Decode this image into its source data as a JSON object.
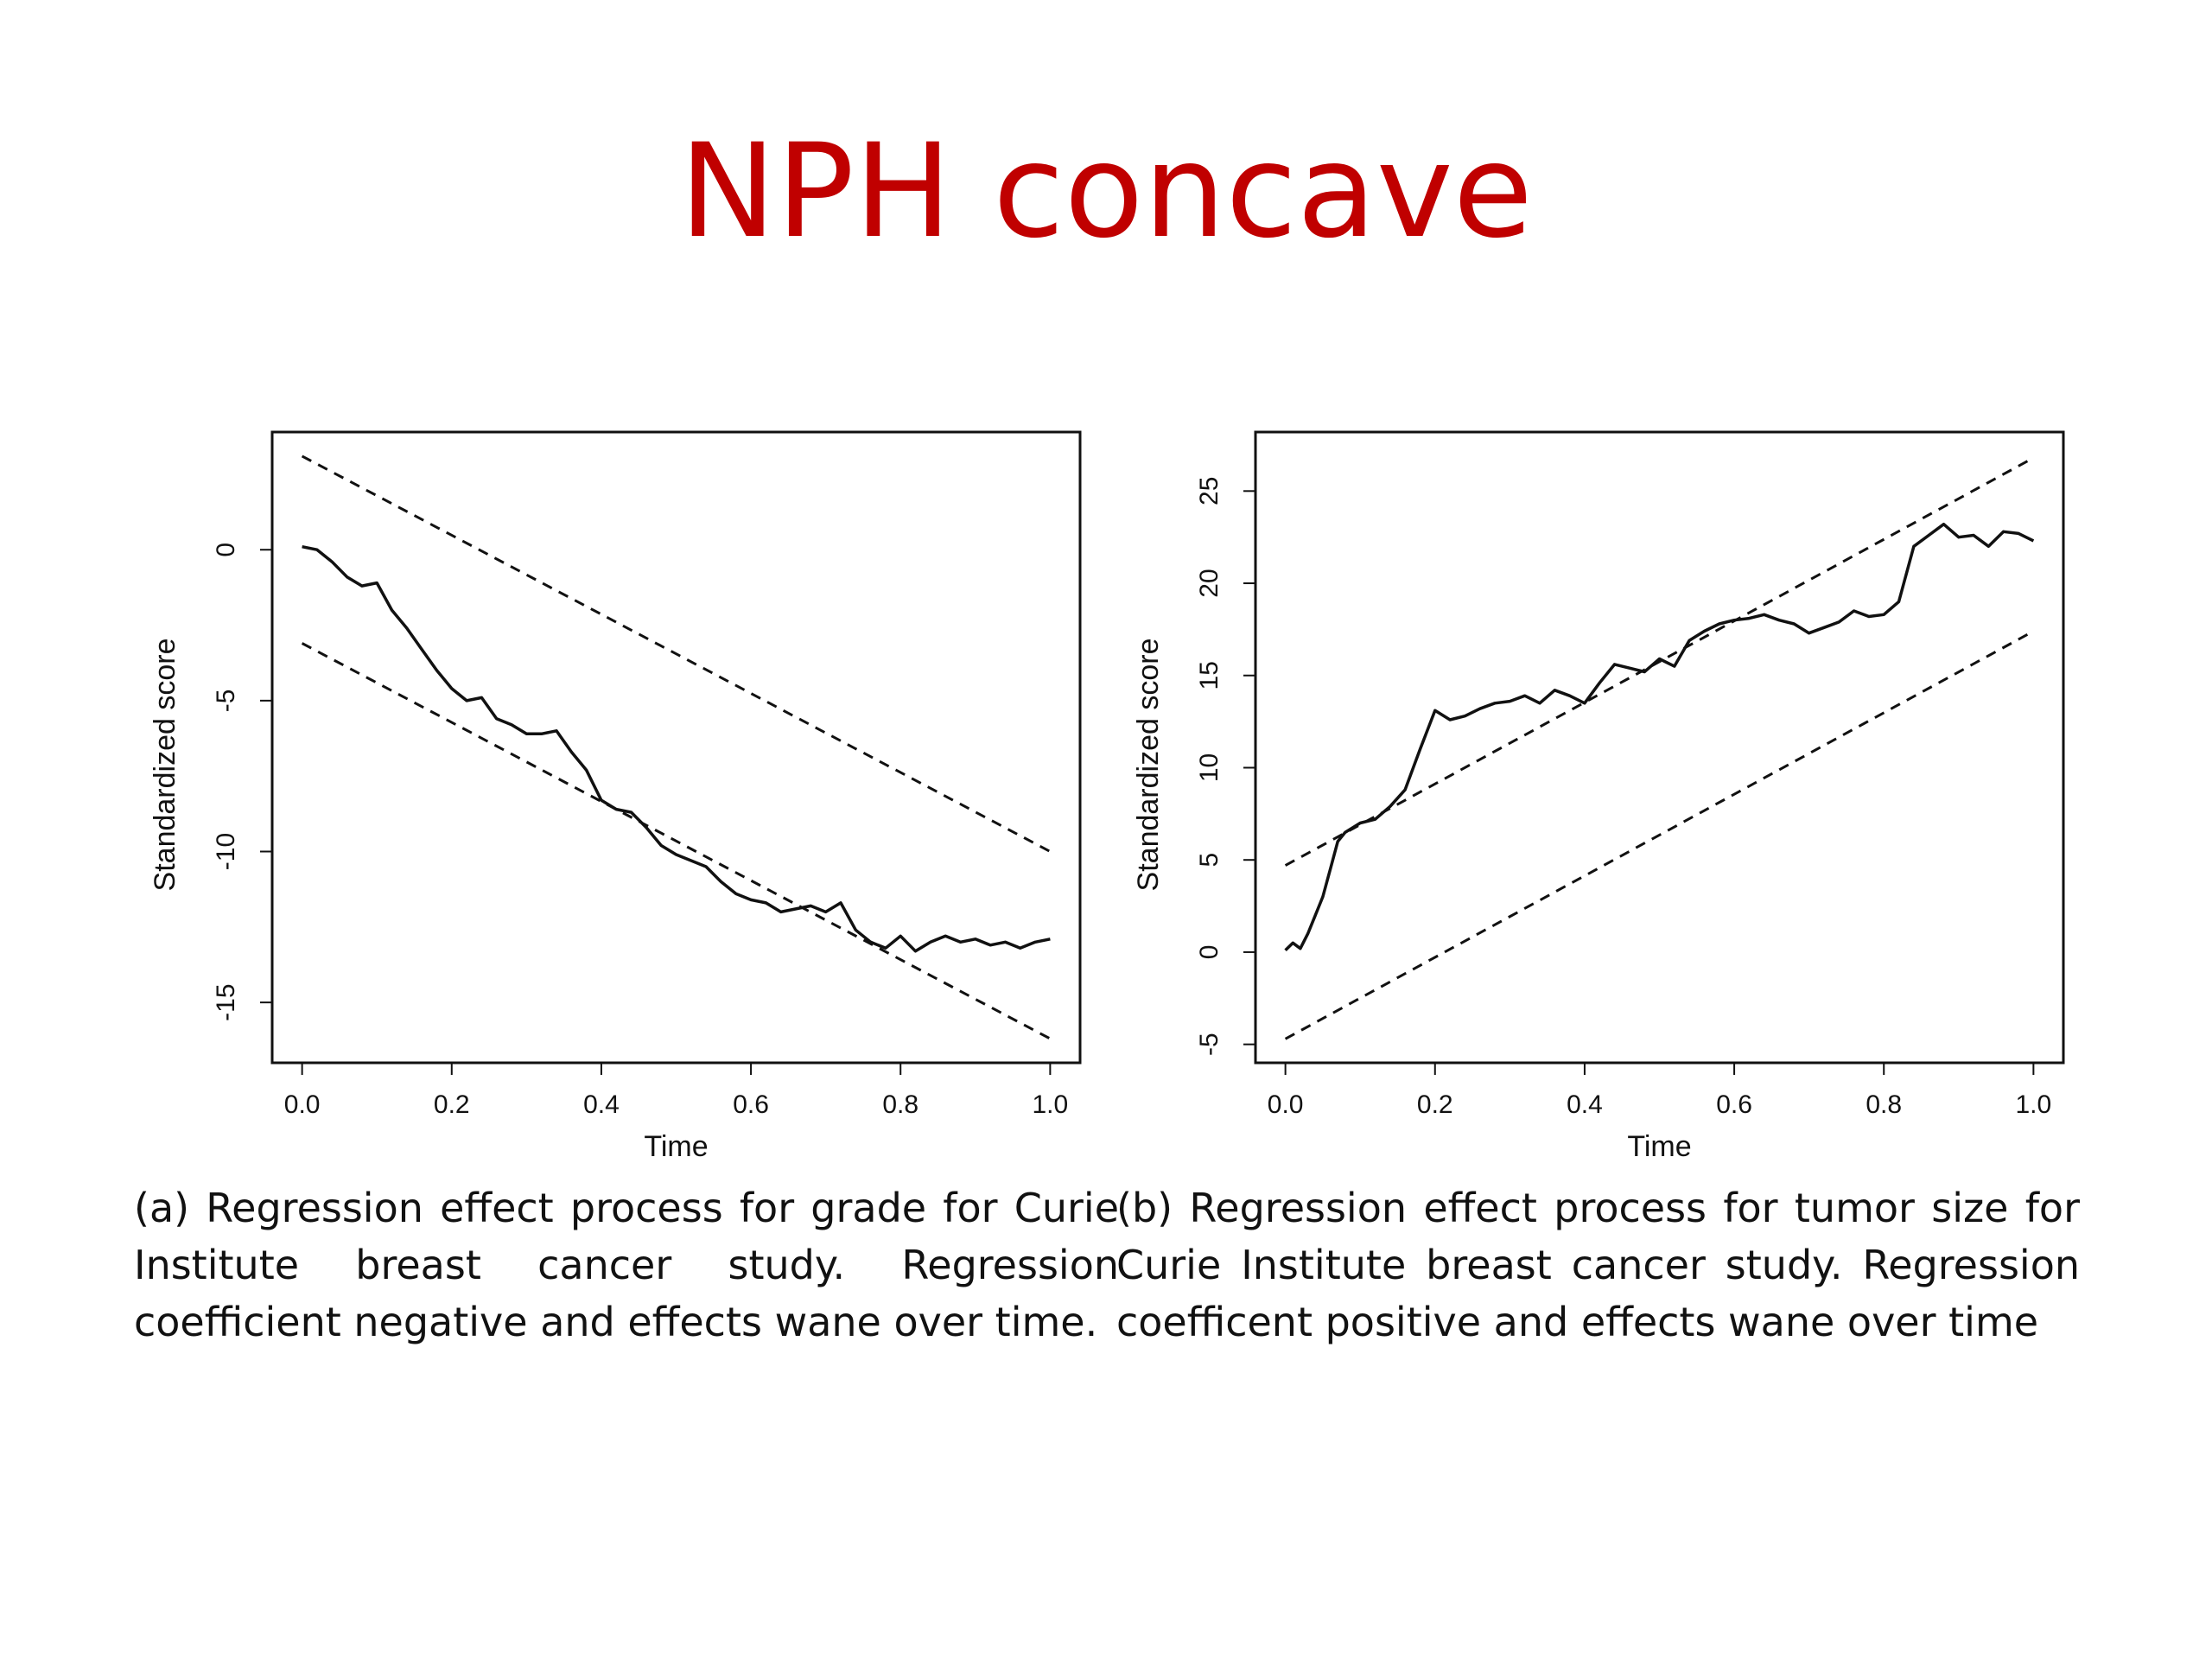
{
  "title": "NPH concave",
  "captions": {
    "a": "(a) Regression effect process for grade for Curie Institute breast cancer study. Regression coefficient negative and effects wane over time.",
    "b": "(b) Regression effect process for tumor size for Curie Institute breast cancer study. Regression coefficent positive and effects wane over time"
  },
  "chart_data": [
    {
      "type": "line",
      "panel": "a",
      "xlabel": "Time",
      "ylabel": "Standardized score",
      "xlim": [
        -0.04,
        1.04
      ],
      "ylim": [
        -17,
        3.9
      ],
      "xticks": [
        "0.0",
        "0.2",
        "0.4",
        "0.6",
        "0.8",
        "1.0"
      ],
      "yticks": [
        "0",
        "-5",
        "-10",
        "-15"
      ],
      "xtick_values": [
        0,
        0.2,
        0.4,
        0.6,
        0.8,
        1.0
      ],
      "ytick_values": [
        0,
        -5,
        -10,
        -15
      ],
      "series": [
        {
          "style": "solid",
          "x": [
            0.0,
            0.02,
            0.04,
            0.06,
            0.08,
            0.1,
            0.12,
            0.14,
            0.16,
            0.18,
            0.2,
            0.22,
            0.24,
            0.26,
            0.28,
            0.3,
            0.32,
            0.34,
            0.36,
            0.38,
            0.4,
            0.42,
            0.44,
            0.46,
            0.48,
            0.5,
            0.52,
            0.54,
            0.56,
            0.58,
            0.6,
            0.62,
            0.64,
            0.66,
            0.68,
            0.7,
            0.72,
            0.74,
            0.76,
            0.78,
            0.8,
            0.82,
            0.84,
            0.86,
            0.88,
            0.9,
            0.92,
            0.94,
            0.96,
            0.98,
            1.0
          ],
          "y": [
            0.1,
            0.0,
            -0.4,
            -0.9,
            -1.2,
            -1.1,
            -2.0,
            -2.6,
            -3.3,
            -4.0,
            -4.6,
            -5.0,
            -4.9,
            -5.6,
            -5.8,
            -6.1,
            -6.1,
            -6.0,
            -6.7,
            -7.3,
            -8.3,
            -8.6,
            -8.7,
            -9.2,
            -9.8,
            -10.1,
            -10.3,
            -10.5,
            -11.0,
            -11.4,
            -11.6,
            -11.7,
            -12.0,
            -11.9,
            -11.8,
            -12.0,
            -11.7,
            -12.6,
            -13.0,
            -13.2,
            -12.8,
            -13.3,
            -13.0,
            -12.8,
            -13.0,
            -12.9,
            -13.1,
            -13.0,
            -13.2,
            -13.0,
            -12.9
          ]
        },
        {
          "style": "dashed",
          "x": [
            0,
            1
          ],
          "y": [
            3.1,
            -10.0
          ]
        },
        {
          "style": "dashed",
          "x": [
            0,
            1
          ],
          "y": [
            -3.1,
            -16.2
          ]
        }
      ]
    },
    {
      "type": "line",
      "panel": "b",
      "xlabel": "Time",
      "ylabel": "Standardized score",
      "xlim": [
        -0.04,
        1.04
      ],
      "ylim": [
        -6,
        28.2
      ],
      "xticks": [
        "0.0",
        "0.2",
        "0.4",
        "0.6",
        "0.8",
        "1.0"
      ],
      "yticks": [
        "-5",
        "0",
        "5",
        "10",
        "15",
        "20",
        "25"
      ],
      "xtick_values": [
        0,
        0.2,
        0.4,
        0.6,
        0.8,
        1.0
      ],
      "ytick_values": [
        -5,
        0,
        5,
        10,
        15,
        20,
        25
      ],
      "series": [
        {
          "style": "solid",
          "x": [
            0.0,
            0.01,
            0.02,
            0.03,
            0.04,
            0.05,
            0.06,
            0.07,
            0.08,
            0.1,
            0.12,
            0.14,
            0.16,
            0.18,
            0.2,
            0.22,
            0.24,
            0.26,
            0.28,
            0.3,
            0.32,
            0.34,
            0.36,
            0.38,
            0.4,
            0.42,
            0.44,
            0.46,
            0.48,
            0.5,
            0.52,
            0.54,
            0.56,
            0.58,
            0.6,
            0.62,
            0.64,
            0.66,
            0.68,
            0.7,
            0.72,
            0.74,
            0.76,
            0.78,
            0.8,
            0.82,
            0.84,
            0.86,
            0.88,
            0.9,
            0.92,
            0.94,
            0.96,
            0.98,
            1.0
          ],
          "y": [
            0.1,
            0.5,
            0.2,
            1.0,
            2.0,
            3.0,
            4.5,
            6.0,
            6.5,
            7.0,
            7.2,
            7.9,
            8.8,
            11.0,
            13.1,
            12.6,
            12.8,
            13.2,
            13.5,
            13.6,
            13.9,
            13.5,
            14.2,
            13.9,
            13.5,
            14.6,
            15.6,
            15.4,
            15.2,
            15.9,
            15.5,
            16.9,
            17.4,
            17.8,
            18.0,
            18.1,
            18.3,
            18.0,
            17.8,
            17.3,
            17.6,
            17.9,
            18.5,
            18.2,
            18.3,
            19.0,
            22.0,
            22.6,
            23.2,
            22.5,
            22.6,
            22.0,
            22.8,
            22.7,
            22.3
          ]
        },
        {
          "style": "dashed",
          "x": [
            0,
            1
          ],
          "y": [
            4.7,
            26.8
          ]
        },
        {
          "style": "dashed",
          "x": [
            0,
            1
          ],
          "y": [
            -4.7,
            17.4
          ]
        }
      ]
    }
  ]
}
